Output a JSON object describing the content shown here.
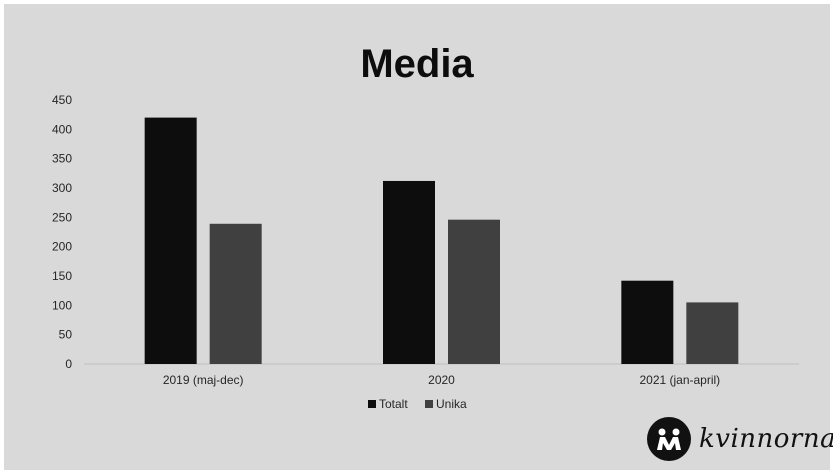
{
  "chart_data": {
    "type": "bar",
    "title": "Media",
    "categories": [
      "2019 (maj-dec)",
      "2020",
      "2021 (jan-april)"
    ],
    "series": [
      {
        "name": "Totalt",
        "values": [
          420,
          312,
          142
        ],
        "color": "#0d0d0d"
      },
      {
        "name": "Unika",
        "values": [
          239,
          246,
          105
        ],
        "color": "#404040"
      }
    ],
    "ylim": [
      0,
      450
    ],
    "yticks": [
      "0",
      "50",
      "100",
      "150",
      "200",
      "250",
      "300",
      "350",
      "400",
      "450"
    ],
    "xlabel": "",
    "ylabel": "",
    "legend_position": "bottom",
    "grid": false
  },
  "logo": {
    "text": "kvinnorna",
    "icon": "kvinnorna-logo-icon"
  }
}
